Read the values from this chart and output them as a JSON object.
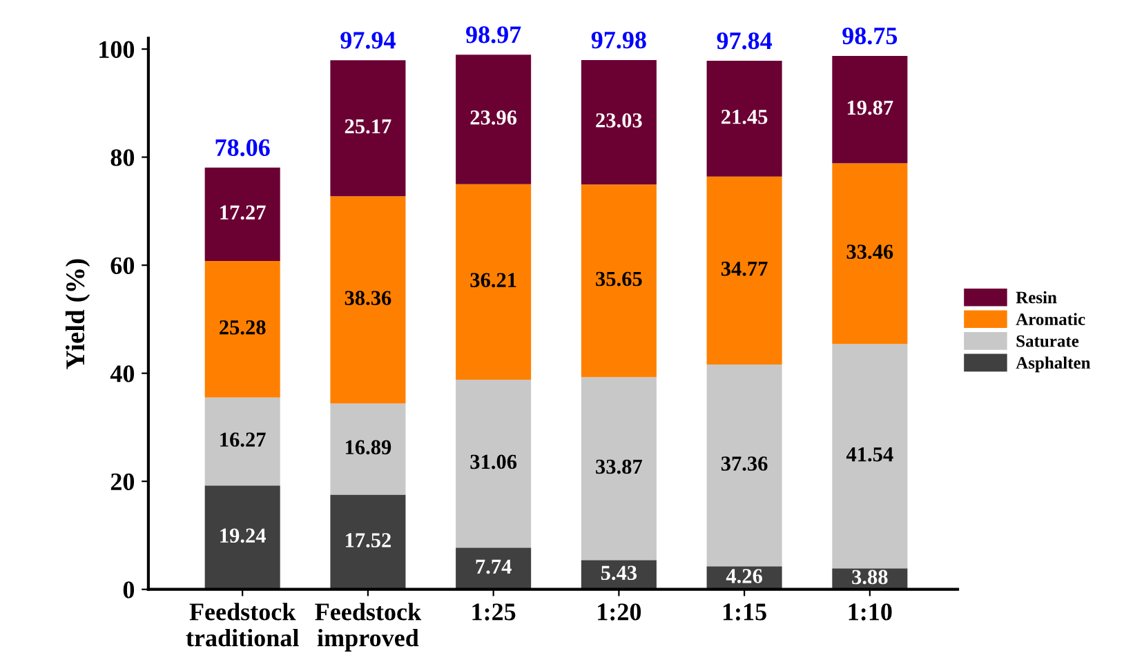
{
  "chart_data": {
    "type": "bar",
    "stacked": true,
    "ylabel": "Yield (%)",
    "categories": [
      "Feedstock\ntraditional",
      "Feedstock\nimproved",
      "1:25",
      "1:20",
      "1:15",
      "1:10"
    ],
    "series": [
      {
        "name": "Asphalten",
        "color": "#404040",
        "values": [
          19.24,
          17.52,
          7.74,
          5.43,
          4.26,
          3.88
        ]
      },
      {
        "name": "Saturate",
        "color": "#c8c8c8",
        "values": [
          16.27,
          16.89,
          31.06,
          33.87,
          37.36,
          41.54
        ]
      },
      {
        "name": "Aromatic",
        "color": "#ff8000",
        "values": [
          25.28,
          38.36,
          36.21,
          35.65,
          34.77,
          33.46
        ]
      },
      {
        "name": "Resin",
        "color": "#6b0033",
        "values": [
          17.27,
          25.17,
          23.96,
          23.03,
          21.45,
          19.87
        ]
      }
    ],
    "data_labels": true,
    "totals": [
      "78.06",
      "97.94",
      "98.97",
      "97.98",
      "97.84",
      "98.75"
    ],
    "ylim": [
      0,
      102
    ],
    "yticks": [
      0,
      20,
      40,
      60,
      80,
      100
    ],
    "grid": false,
    "legend": "right"
  }
}
